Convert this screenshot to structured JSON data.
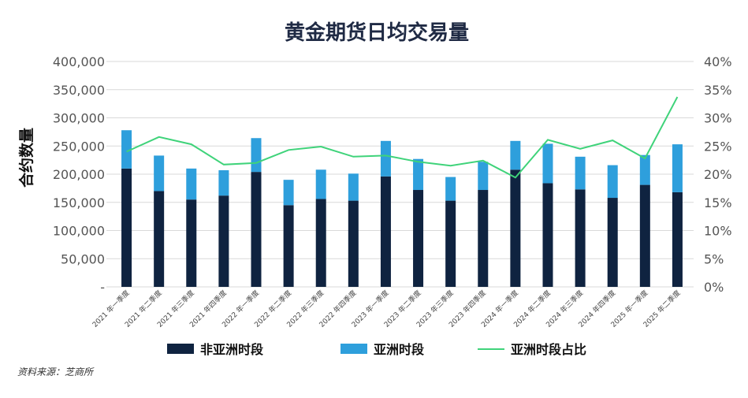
{
  "chart_data": {
    "type": "bar",
    "title": "黄金期货日均交易量",
    "ylabel": "合约数量",
    "categories": [
      "2021 年一季度",
      "2021 年二季度",
      "2021 年三季度",
      "2021 年四季度",
      "2022 年一季度",
      "2022 年二季度",
      "2022 年三季度",
      "2022 年四季度",
      "2023 年一季度",
      "2023 年二季度",
      "2023 年三季度",
      "2023 年四季度",
      "2024 年一季度",
      "2024 年二季度",
      "2024 年三季度",
      "2024 年四季度",
      "2025 年一季度",
      "2025 年二季度"
    ],
    "series": [
      {
        "name": "非亚洲时段",
        "kind": "stacked-bar",
        "color": "#0f2340",
        "values": [
          210000,
          170000,
          155000,
          162000,
          204000,
          145000,
          156000,
          153000,
          196000,
          172000,
          153000,
          172000,
          208000,
          184000,
          173000,
          158000,
          181000,
          168000
        ]
      },
      {
        "name": "亚洲时段",
        "kind": "stacked-bar",
        "color": "#2e9fdc",
        "values": [
          68000,
          63000,
          55000,
          45000,
          60000,
          45000,
          52000,
          48000,
          63000,
          55000,
          42000,
          50000,
          51000,
          70000,
          58000,
          58000,
          53000,
          85000
        ]
      },
      {
        "name": "亚洲时段占比",
        "kind": "line",
        "axis": "right",
        "color": "#3fd37a",
        "values": [
          24.0,
          26.6,
          25.3,
          21.7,
          22.0,
          24.3,
          24.9,
          23.1,
          23.3,
          22.2,
          21.5,
          22.4,
          19.4,
          26.1,
          24.5,
          26.0,
          22.8,
          33.7
        ]
      }
    ],
    "ylim": [
      0,
      400000
    ],
    "yticks": [
      "-",
      "50,000",
      "100,000",
      "150,000",
      "200,000",
      "250,000",
      "300,000",
      "350,000",
      "400,000"
    ],
    "y2lim": [
      0,
      40
    ],
    "y2ticks": [
      "0%",
      "5%",
      "10%",
      "15%",
      "20%",
      "25%",
      "30%",
      "35%",
      "40%"
    ],
    "grid": true,
    "legend_position": "bottom"
  },
  "source": "资料来源：芝商所"
}
